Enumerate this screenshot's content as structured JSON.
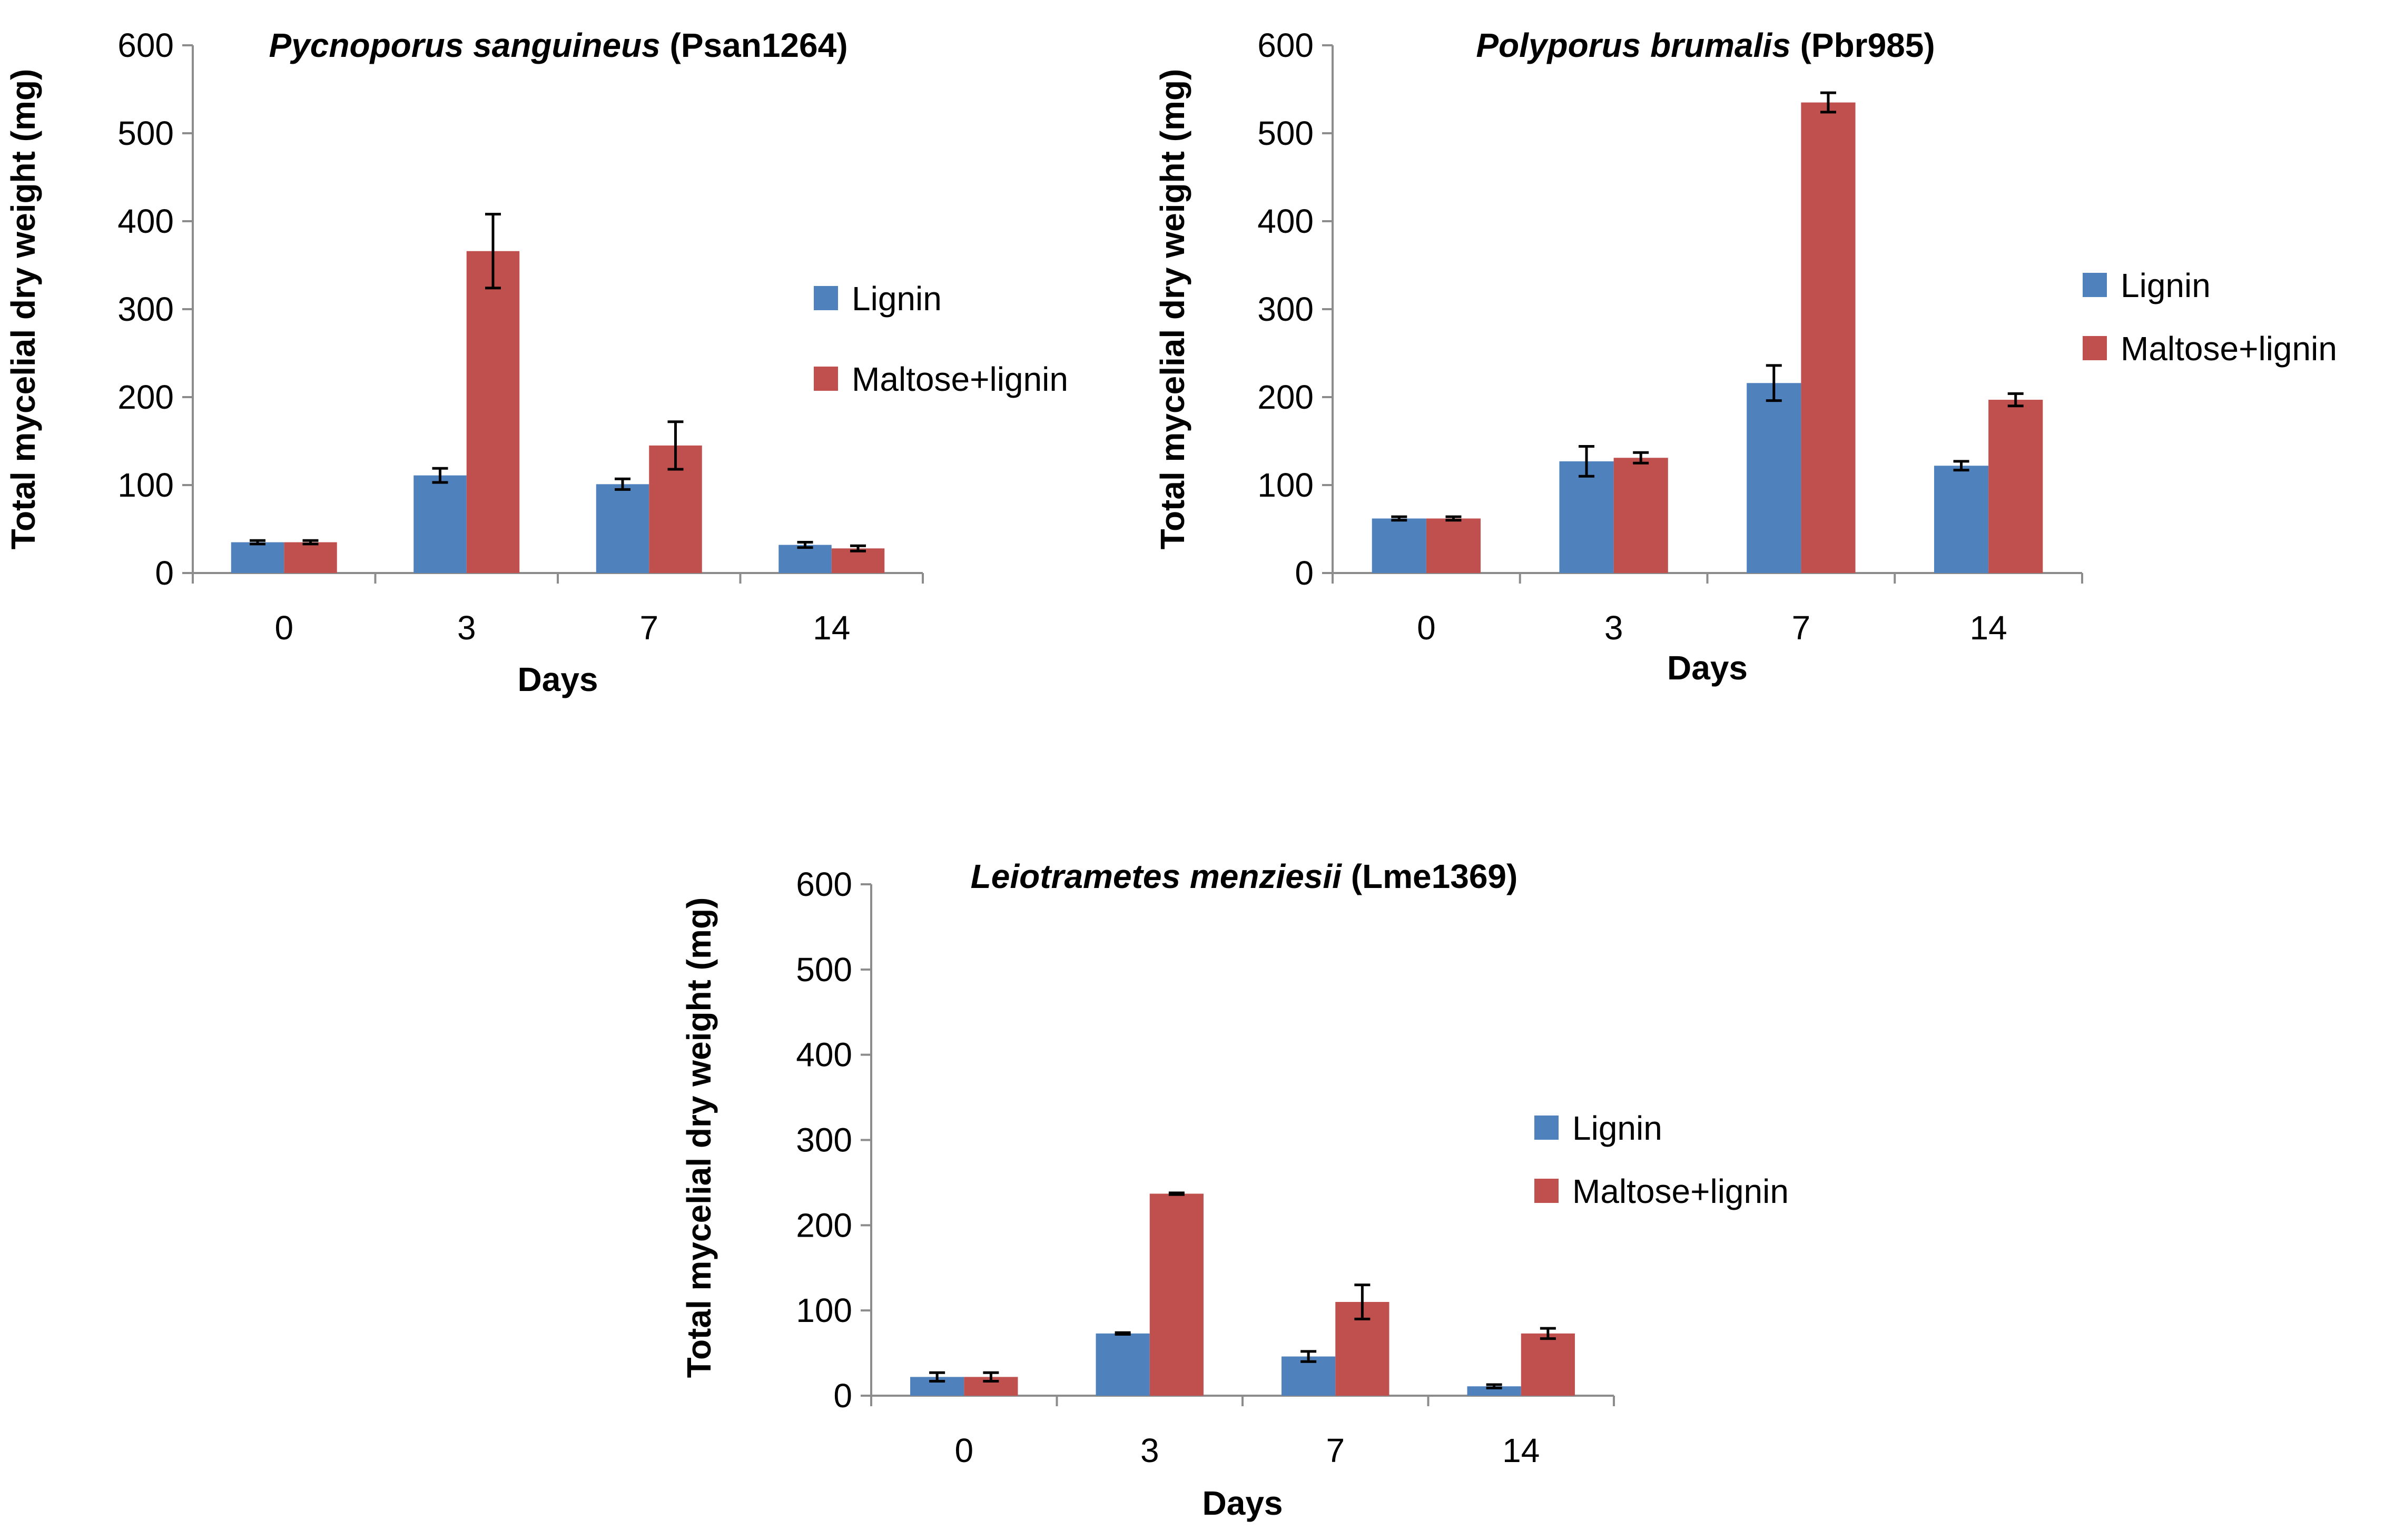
{
  "chart_data": [
    {
      "type": "bar",
      "title": "Pycnoporus sanguineus",
      "title_suffix": "(Psan1264)",
      "xlabel": "Days",
      "ylabel": "Total mycelial dry weight (mg)",
      "categories": [
        "0",
        "3",
        "7",
        "14"
      ],
      "ylim": [
        0,
        600
      ],
      "yticks": [
        0,
        100,
        200,
        300,
        400,
        500,
        600
      ],
      "series": [
        {
          "name": "Lignin",
          "color": "#4F81BD",
          "values": [
            35,
            111,
            101,
            32
          ],
          "errors": [
            2,
            8,
            6,
            3
          ]
        },
        {
          "name": "Maltose+lignin",
          "color": "#C0504D",
          "values": [
            35,
            366,
            145,
            28
          ],
          "errors": [
            2,
            42,
            27,
            3
          ]
        }
      ]
    },
    {
      "type": "bar",
      "title": "Polyporus brumalis",
      "title_suffix": "(Pbr985)",
      "xlabel": "Days",
      "ylabel": "Total mycelial dry weight (mg)",
      "categories": [
        "0",
        "3",
        "7",
        "14"
      ],
      "ylim": [
        0,
        600
      ],
      "yticks": [
        0,
        100,
        200,
        300,
        400,
        500,
        600
      ],
      "series": [
        {
          "name": "Lignin",
          "color": "#4F81BD",
          "values": [
            62,
            127,
            216,
            122
          ],
          "errors": [
            2,
            17,
            20,
            5
          ]
        },
        {
          "name": "Maltose+lignin",
          "color": "#C0504D",
          "values": [
            62,
            131,
            535,
            197
          ],
          "errors": [
            2,
            6,
            11,
            7
          ]
        }
      ]
    },
    {
      "type": "bar",
      "title": "Leiotrametes menziesii",
      "title_suffix": "(Lme1369)",
      "xlabel": "Days",
      "ylabel": "Total mycelial dry weight (mg)",
      "categories": [
        "0",
        "3",
        "7",
        "14"
      ],
      "ylim": [
        0,
        600
      ],
      "yticks": [
        0,
        100,
        200,
        300,
        400,
        500,
        600
      ],
      "series": [
        {
          "name": "Lignin",
          "color": "#4F81BD",
          "values": [
            22,
            73,
            46,
            11
          ],
          "errors": [
            5,
            1,
            6,
            2
          ]
        },
        {
          "name": "Maltose+lignin",
          "color": "#C0504D",
          "values": [
            22,
            237,
            110,
            73
          ],
          "errors": [
            5,
            1,
            20,
            6
          ]
        }
      ]
    }
  ]
}
